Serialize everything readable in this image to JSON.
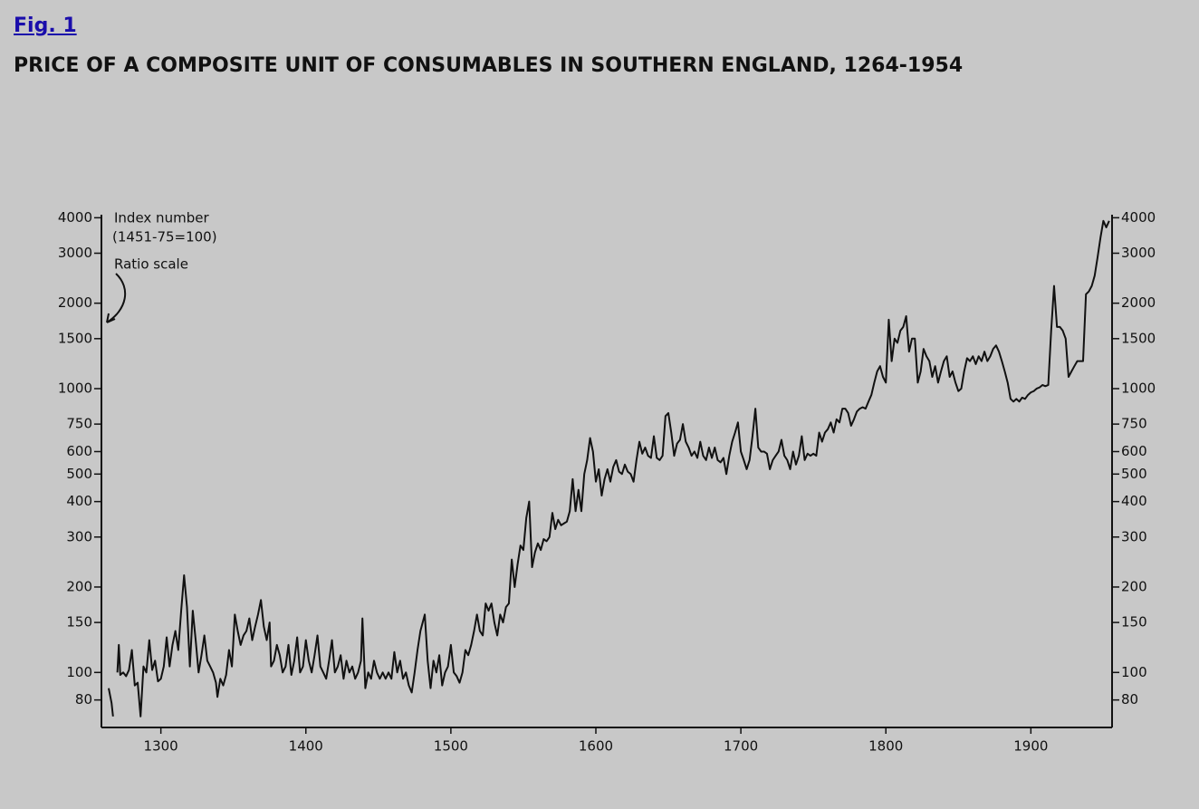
{
  "figure_label": "Fig. 1",
  "chart_data": {
    "type": "line",
    "title": "PRICE OF A COMPOSITE UNIT OF CONSUMABLES IN SOUTHERN ENGLAND, 1264-1954",
    "annotations": [
      "Index number",
      "(1451-75=100)",
      "Ratio scale"
    ],
    "log_scale": true,
    "xlim": [
      1259,
      1956
    ],
    "xticks": [
      1300,
      1400,
      1500,
      1600,
      1700,
      1800,
      1900
    ],
    "ylim": [
      64,
      4100
    ],
    "yticks": [
      80,
      100,
      150,
      200,
      300,
      400,
      500,
      600,
      750,
      1000,
      1500,
      2000,
      3000,
      4000
    ],
    "y2lim": [
      64,
      4100
    ],
    "y2ticks": [
      80,
      100,
      150,
      200,
      300,
      400,
      500,
      600,
      750,
      1000,
      1500,
      2000,
      3000,
      4000
    ],
    "x": [
      1264,
      1266,
      1267,
      1268,
      1270,
      1271,
      1272,
      1274,
      1276,
      1278,
      1280,
      1282,
      1284,
      1286,
      1288,
      1290,
      1292,
      1294,
      1296,
      1298,
      1300,
      1302,
      1304,
      1306,
      1308,
      1310,
      1312,
      1314,
      1316,
      1318,
      1320,
      1322,
      1324,
      1326,
      1328,
      1330,
      1332,
      1334,
      1336,
      1338,
      1339,
      1341,
      1343,
      1345,
      1347,
      1349,
      1351,
      1353,
      1355,
      1357,
      1359,
      1361,
      1363,
      1365,
      1367,
      1369,
      1371,
      1373,
      1375,
      1376,
      1378,
      1380,
      1382,
      1384,
      1386,
      1388,
      1390,
      1392,
      1394,
      1396,
      1398,
      1400,
      1402,
      1404,
      1406,
      1408,
      1410,
      1412,
      1414,
      1416,
      1418,
      1420,
      1422,
      1424,
      1426,
      1428,
      1430,
      1432,
      1434,
      1436,
      1438,
      1439,
      1441,
      1443,
      1445,
      1447,
      1449,
      1451,
      1453,
      1455,
      1457,
      1459,
      1461,
      1463,
      1465,
      1467,
      1469,
      1471,
      1473,
      1475,
      1477,
      1479,
      1482,
      1484,
      1486,
      1488,
      1490,
      1492,
      1494,
      1496,
      1498,
      1500,
      1502,
      1504,
      1506,
      1508,
      1510,
      1512,
      1514,
      1516,
      1518,
      1520,
      1522,
      1524,
      1526,
      1528,
      1530,
      1532,
      1534,
      1536,
      1538,
      1540,
      1542,
      1544,
      1546,
      1548,
      1550,
      1552,
      1554,
      1556,
      1558,
      1560,
      1562,
      1564,
      1566,
      1568,
      1570,
      1572,
      1574,
      1576,
      1578,
      1580,
      1582,
      1584,
      1586,
      1588,
      1590,
      1592,
      1594,
      1596,
      1598,
      1600,
      1602,
      1604,
      1606,
      1608,
      1610,
      1612,
      1614,
      1616,
      1618,
      1620,
      1622,
      1624,
      1626,
      1628,
      1630,
      1632,
      1634,
      1636,
      1638,
      1640,
      1642,
      1644,
      1646,
      1648,
      1650,
      1652,
      1654,
      1656,
      1658,
      1660,
      1662,
      1664,
      1666,
      1668,
      1670,
      1672,
      1674,
      1676,
      1678,
      1680,
      1682,
      1684,
      1686,
      1688,
      1690,
      1692,
      1694,
      1696,
      1698,
      1700,
      1702,
      1704,
      1706,
      1708,
      1710,
      1712,
      1714,
      1716,
      1718,
      1720,
      1722,
      1724,
      1726,
      1728,
      1730,
      1732,
      1734,
      1736,
      1738,
      1740,
      1742,
      1744,
      1746,
      1748,
      1750,
      1752,
      1754,
      1756,
      1758,
      1760,
      1762,
      1764,
      1766,
      1768,
      1770,
      1772,
      1774,
      1776,
      1778,
      1780,
      1782,
      1784,
      1786,
      1788,
      1790,
      1792,
      1794,
      1796,
      1798,
      1800,
      1802,
      1804,
      1806,
      1808,
      1810,
      1812,
      1814,
      1816,
      1818,
      1820,
      1822,
      1824,
      1826,
      1828,
      1830,
      1832,
      1834,
      1836,
      1838,
      1840,
      1842,
      1844,
      1846,
      1848,
      1850,
      1852,
      1854,
      1856,
      1858,
      1860,
      1862,
      1864,
      1866,
      1868,
      1870,
      1872,
      1874,
      1876,
      1878,
      1880,
      1882,
      1884,
      1886,
      1888,
      1890,
      1892,
      1894,
      1896,
      1898,
      1900,
      1902,
      1904,
      1906,
      1908,
      1910,
      1912,
      1914,
      1916,
      1918,
      1920,
      1922,
      1924,
      1926,
      1928,
      1930,
      1932,
      1934,
      1936,
      1938,
      1940,
      1942,
      1944,
      1946,
      1948,
      1950,
      1952,
      1954
    ],
    "series": [
      {
        "color": "#111111",
        "values": [
          88,
          78,
          70,
          null,
          100,
          125,
          98,
          100,
          97,
          102,
          120,
          90,
          92,
          70,
          105,
          100,
          130,
          102,
          110,
          93,
          95,
          105,
          133,
          105,
          125,
          140,
          120,
          165,
          220,
          170,
          105,
          165,
          130,
          100,
          115,
          135,
          110,
          105,
          100,
          92,
          82,
          95,
          90,
          98,
          120,
          105,
          160,
          140,
          125,
          135,
          140,
          155,
          130,
          145,
          160,
          180,
          145,
          130,
          150,
          105,
          110,
          125,
          115,
          100,
          105,
          125,
          98,
          110,
          133,
          100,
          105,
          130,
          110,
          100,
          115,
          135,
          105,
          100,
          95,
          110,
          130,
          100,
          105,
          115,
          95,
          110,
          100,
          105,
          95,
          100,
          110,
          155,
          88,
          100,
          95,
          110,
          100,
          95,
          100,
          95,
          100,
          95,
          118,
          100,
          110,
          95,
          100,
          90,
          85,
          100,
          120,
          140,
          160,
          110,
          88,
          110,
          100,
          115,
          90,
          100,
          105,
          125,
          100,
          97,
          92,
          100,
          120,
          115,
          125,
          140,
          160,
          140,
          135,
          175,
          165,
          175,
          150,
          135,
          160,
          150,
          170,
          175,
          250,
          200,
          240,
          280,
          270,
          350,
          400,
          235,
          265,
          285,
          270,
          295,
          290,
          300,
          365,
          320,
          345,
          330,
          335,
          340,
          370,
          480,
          370,
          440,
          370,
          500,
          560,
          670,
          600,
          470,
          520,
          420,
          480,
          520,
          470,
          530,
          560,
          510,
          500,
          540,
          510,
          500,
          470,
          560,
          650,
          590,
          620,
          580,
          570,
          680,
          570,
          560,
          580,
          800,
          820,
          700,
          580,
          640,
          660,
          750,
          650,
          620,
          580,
          600,
          570,
          650,
          580,
          560,
          620,
          570,
          620,
          560,
          550,
          570,
          500,
          580,
          650,
          700,
          760,
          600,
          560,
          520,
          560,
          680,
          850,
          620,
          600,
          600,
          590,
          520,
          560,
          580,
          600,
          660,
          580,
          560,
          520,
          600,
          540,
          580,
          680,
          560,
          590,
          580,
          590,
          580,
          700,
          650,
          700,
          720,
          760,
          700,
          780,
          760,
          850,
          850,
          820,
          740,
          780,
          830,
          850,
          860,
          850,
          900,
          950,
          1050,
          1150,
          1200,
          1100,
          1050,
          1750,
          1250,
          1500,
          1450,
          1600,
          1650,
          1800,
          1350,
          1500,
          1500,
          1050,
          1150,
          1380,
          1300,
          1250,
          1100,
          1200,
          1050,
          1150,
          1250,
          1300,
          1100,
          1150,
          1050,
          980,
          1000,
          1150,
          1280,
          1250,
          1300,
          1220,
          1300,
          1250,
          1350,
          1250,
          1300,
          1380,
          1420,
          1350,
          1250,
          1150,
          1050,
          920,
          900,
          920,
          900,
          930,
          920,
          950,
          970,
          980,
          1000,
          1010,
          1030,
          1020,
          1030,
          1600,
          2300,
          1650,
          1650,
          1600,
          1500,
          1100,
          1150,
          1200,
          1250,
          1250,
          1250,
          2150,
          2200,
          2300,
          2500,
          2900,
          3400,
          3900,
          3700,
          3900
        ]
      }
    ]
  }
}
